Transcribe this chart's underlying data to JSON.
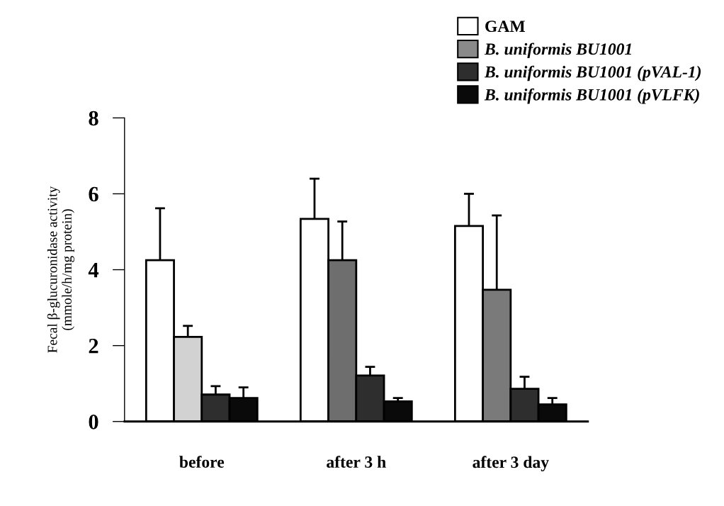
{
  "chart_data": {
    "type": "bar",
    "ylabel": "Fecal β-glucuronidase activity\n(mmole/h/mg protein)",
    "categories": [
      "before",
      "after 3 h",
      "after 3 day"
    ],
    "series": [
      {
        "name": "GAM",
        "color": "#ffffff",
        "values": [
          4.25,
          5.34,
          5.15
        ],
        "errors": [
          1.37,
          1.06,
          0.85
        ]
      },
      {
        "name": "B. uniformis BU1001",
        "color": "#8a8a8a",
        "colors": [
          "#d2d2d2",
          "#6e6e6e",
          "#7a7a7a"
        ],
        "values": [
          2.23,
          4.25,
          3.47
        ],
        "errors": [
          0.29,
          1.02,
          1.96
        ]
      },
      {
        "name": "B. uniformis BU1001 (pVAL-1)",
        "color": "#2e2e2e",
        "values": [
          0.71,
          1.21,
          0.86
        ],
        "errors": [
          0.22,
          0.23,
          0.32
        ]
      },
      {
        "name": "B. uniformis BU1001 (pVLFK)",
        "color": "#0a0a0a",
        "values": [
          0.62,
          0.53,
          0.45
        ],
        "errors": [
          0.28,
          0.09,
          0.17
        ]
      }
    ],
    "ylim": [
      0,
      8
    ],
    "yticks": [
      0,
      2,
      4,
      6,
      8
    ],
    "grid": false,
    "legend": "top right"
  }
}
